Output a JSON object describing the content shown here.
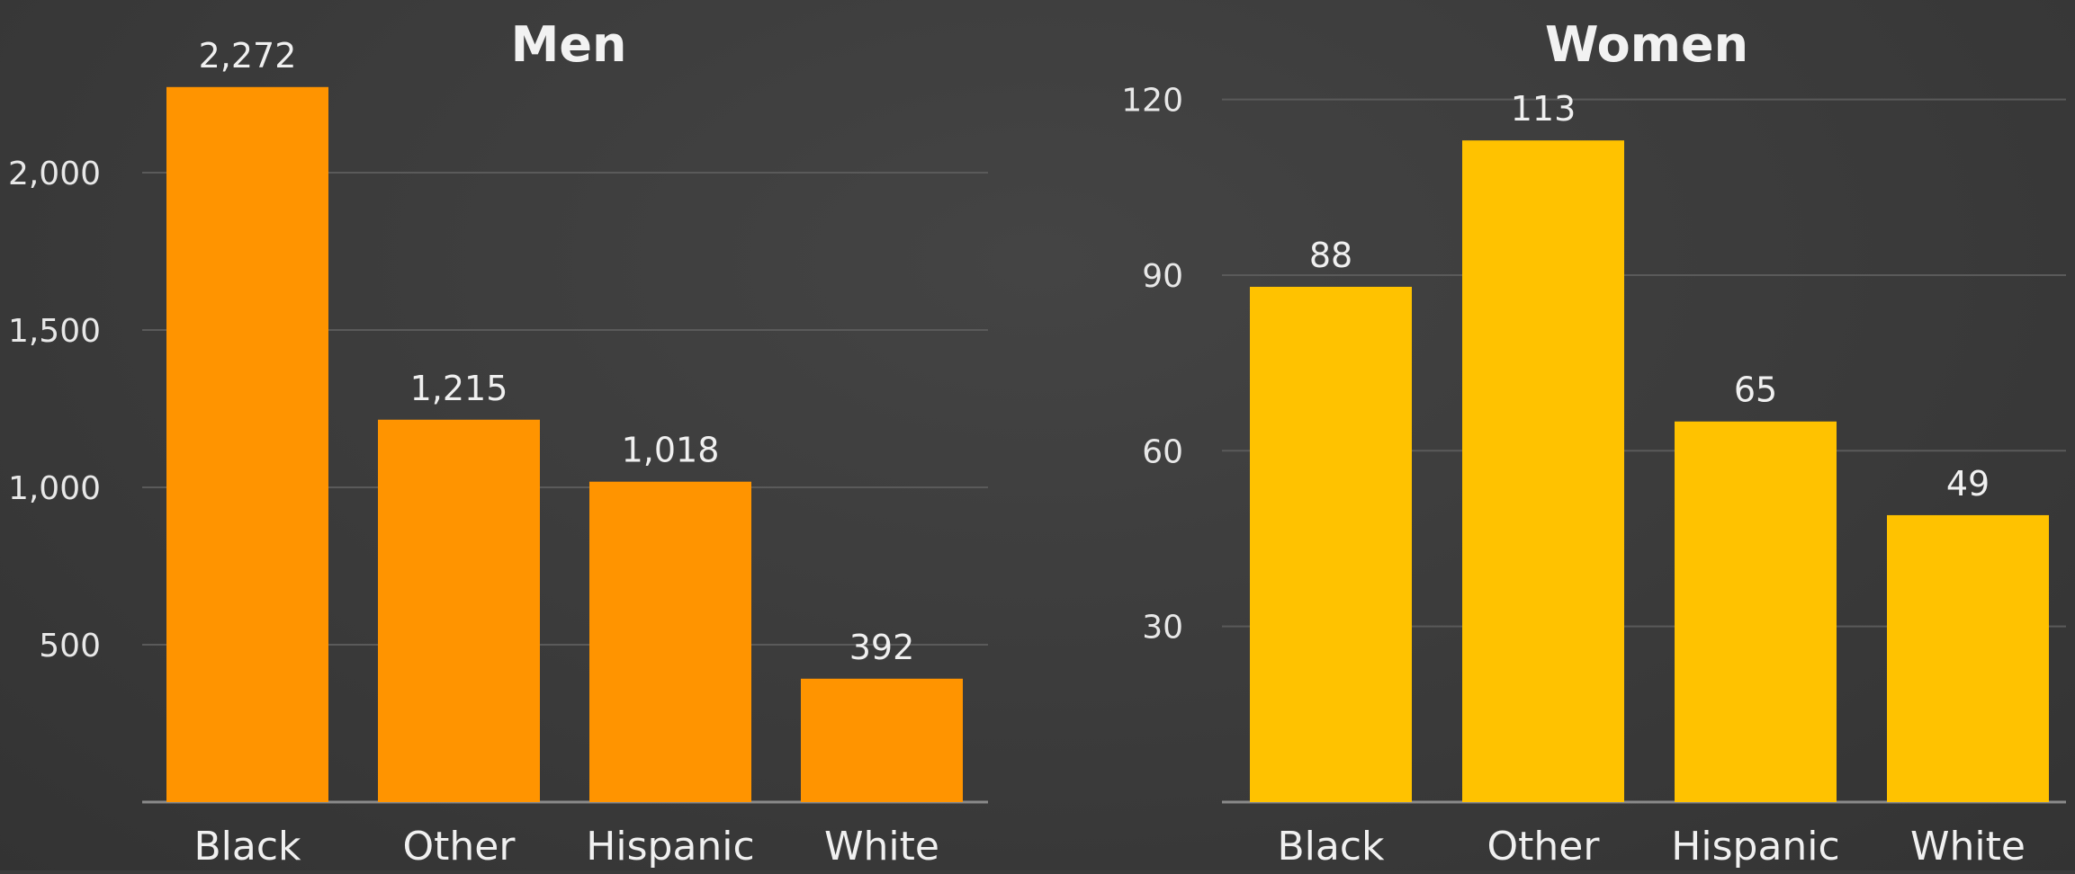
{
  "chart_data": [
    {
      "type": "bar",
      "title": "Men",
      "categories": [
        "Black",
        "Other",
        "Hispanic",
        "White"
      ],
      "values": [
        2272,
        1215,
        1018,
        392
      ],
      "value_labels": [
        "2,272",
        "1,215",
        "1,018",
        "392"
      ],
      "yticks": [
        500,
        1000,
        1500,
        2000
      ],
      "ytick_labels": [
        "500",
        "1,000",
        "1,500",
        "2,000"
      ],
      "ylim": [
        0,
        2400
      ],
      "grid": true,
      "color": "#ff9400"
    },
    {
      "type": "bar",
      "title": "Women",
      "categories": [
        "Black",
        "Other",
        "Hispanic",
        "White"
      ],
      "values": [
        88,
        113,
        65,
        49
      ],
      "value_labels": [
        "88",
        "113",
        "65",
        "49"
      ],
      "yticks": [
        30,
        60,
        90,
        120
      ],
      "ytick_labels": [
        "30",
        "60",
        "90",
        "120"
      ],
      "ylim": [
        0,
        129
      ],
      "grid": true,
      "color": "#ffc200"
    }
  ]
}
